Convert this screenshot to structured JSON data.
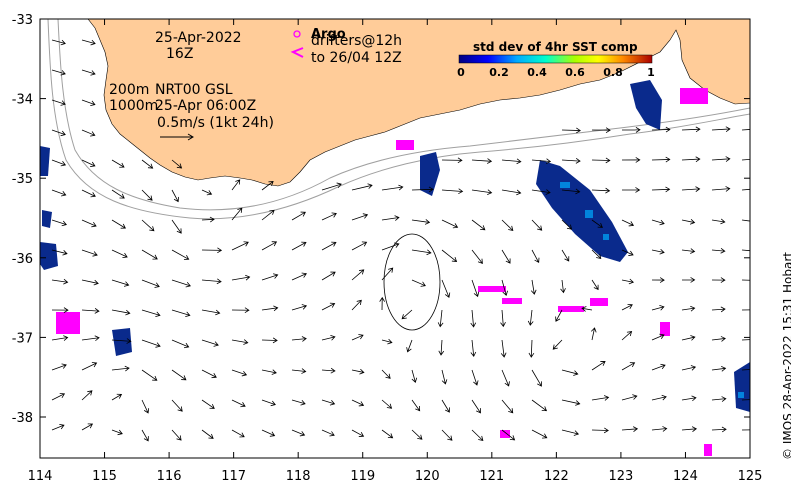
{
  "map": {
    "x_ticks": [
      "114",
      "115",
      "116",
      "117",
      "118",
      "119",
      "120",
      "121",
      "122",
      "123",
      "124",
      "125"
    ],
    "y_ticks": [
      "-33",
      "-34",
      "-35",
      "-36",
      "-37",
      "-38"
    ],
    "date": "25-Apr-2022",
    "hour": "16Z",
    "legend_argo_title": "Argo",
    "legend_drifters": "drifters@12h",
    "legend_to_date": "to 26/04 12Z",
    "isobath_label": "200m",
    "isobath_label_2": "1000m",
    "product": "NRT00 GSL",
    "product_time": "25-Apr 06:00Z",
    "scale_label": "0.5m/s (1kt 24h)",
    "credit": "© IMOS 28-Apr-2022 15:31 Hobart",
    "colorbar": {
      "title": "std dev of 4hr SST comp",
      "ticks": [
        "0",
        "0.2",
        "0.4",
        "0.6",
        "0.8",
        "1"
      ]
    },
    "colors": {
      "land": "#FFCC99",
      "sst_patch": "#0A2A8C",
      "drifter": "#FF00FF",
      "isobath": "#A0A0A0",
      "arrow": "#000000"
    },
    "icons": [
      "argo-float-icon",
      "drifter-arrow-icon",
      "scale-arrow-icon"
    ]
  }
}
